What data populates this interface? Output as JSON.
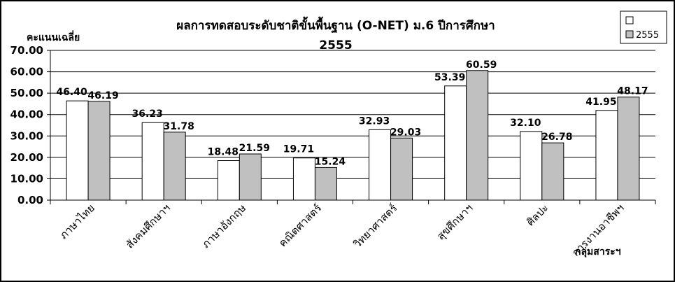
{
  "chart_data": {
    "type": "bar",
    "title": "ผลการทดสอบระดับชาติขั้นพื้นฐาน (O-NET) ม.6 ปีการศึกษา 2555",
    "ylabel": "คะแนนเฉลี่ย",
    "xlabel": "กลุ่มสาระฯ",
    "ylim": [
      0,
      70
    ],
    "yticks": [
      "0.00",
      "10.00",
      "20.00",
      "30.00",
      "40.00",
      "50.00",
      "60.00",
      "70.00"
    ],
    "grid": true,
    "legend": "top-right",
    "categories": [
      "ภาษาไทย",
      "สังคมศึกษาฯ",
      "ภาษาอังกฤษ",
      "คณิตศาสตร์",
      "วิทยาศาสตร์",
      "สุขศึกษาฯ",
      "ศิลปะ",
      "การงานอาชีพฯ"
    ],
    "series": [
      {
        "name": "",
        "color": "#ffffff",
        "values": [
          46.4,
          36.23,
          18.48,
          19.71,
          32.93,
          53.39,
          32.1,
          41.95
        ]
      },
      {
        "name": "2555",
        "color": "#c0c0c0",
        "values": [
          46.19,
          31.78,
          21.59,
          15.24,
          29.03,
          60.59,
          26.78,
          48.17
        ]
      }
    ]
  }
}
